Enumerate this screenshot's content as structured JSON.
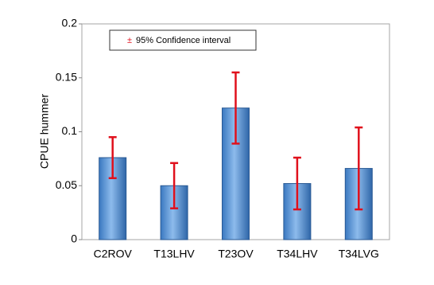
{
  "chart_data": {
    "type": "bar",
    "ylabel": "CPUE hummer",
    "categories": [
      "C2ROV",
      "T13LHV",
      "T23OV",
      "T34LHV",
      "T34LVG"
    ],
    "values": [
      0.076,
      0.05,
      0.122,
      0.052,
      0.066
    ],
    "errors": [
      0.019,
      0.021,
      0.033,
      0.024,
      0.038
    ],
    "color": "#5b9bd5",
    "error_color": "#e0101c",
    "ylim": [
      0,
      0.2
    ],
    "yticks": [
      0,
      0.05,
      0.1,
      0.15,
      0.2
    ],
    "legend": {
      "symbol": "±",
      "label": "95% Confidence interval"
    }
  }
}
